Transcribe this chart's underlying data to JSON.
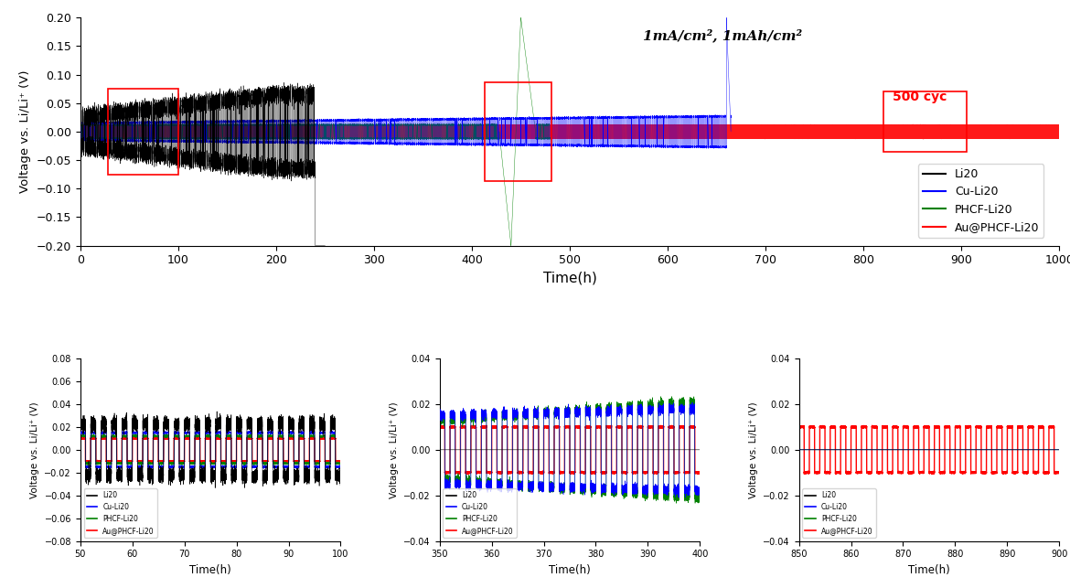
{
  "title_annotation": "1mA/cm², 1mAh/cm²",
  "ylabel_main": "Voltage vs. Li/Li⁺ (V)",
  "xlabel": "Time(h)",
  "legend_labels": [
    "Li20",
    "Cu-Li20",
    "PHCF-Li20",
    "Au@PHCF-Li20"
  ],
  "legend_colors": [
    "black",
    "blue",
    "green",
    "red"
  ],
  "main_xlim": [
    0,
    1000
  ],
  "main_ylim": [
    -0.2,
    0.2
  ],
  "main_yticks": [
    -0.2,
    -0.15,
    -0.1,
    -0.05,
    0.0,
    0.05,
    0.1,
    0.15,
    0.2
  ],
  "main_xticks": [
    0,
    100,
    200,
    300,
    400,
    500,
    600,
    700,
    800,
    900,
    1000
  ],
  "sub1_xlim": [
    50,
    100
  ],
  "sub1_ylim": [
    -0.08,
    0.08
  ],
  "sub1_yticks": [
    -0.08,
    -0.06,
    -0.04,
    -0.02,
    0.0,
    0.02,
    0.04,
    0.06,
    0.08
  ],
  "sub1_xticks": [
    50,
    60,
    70,
    80,
    90,
    100
  ],
  "sub2_xlim": [
    350,
    400
  ],
  "sub2_ylim": [
    -0.04,
    0.04
  ],
  "sub2_yticks": [
    -0.04,
    -0.02,
    0.0,
    0.02,
    0.04
  ],
  "sub2_xticks": [
    350,
    360,
    370,
    380,
    390,
    400
  ],
  "sub3_xlim": [
    850,
    900
  ],
  "sub3_ylim": [
    -0.04,
    0.04
  ],
  "sub3_yticks": [
    -0.04,
    -0.02,
    0.0,
    0.02,
    0.04
  ],
  "sub3_xticks": [
    850,
    860,
    870,
    880,
    890,
    900
  ],
  "box_color": "red",
  "annotation_500cyc_color": "red",
  "period": 2.0,
  "dt_main": 0.005,
  "dt_sub": 0.005
}
